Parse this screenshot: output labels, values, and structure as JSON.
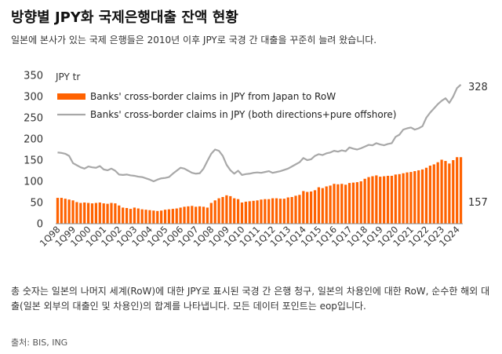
{
  "header": {
    "title": "방향별 JPY화 국제은행대출 잔액 현황",
    "subtitle": "일본에 본사가 있는 국제 은행들은 2010년 이후 JPY로 국경 간 대출을 꾸준히 늘려 왔습니다."
  },
  "footer": {
    "note": "총 숫자는 일본의 나머지 세계(RoW)에 대한 JPY로 표시된 국경 간 은행 청구, 일본의 차용인에 대한 RoW, 순수한 해외 대출(일본 외부의 대출인 및 차용인)의 합계를 나타냅니다. 모든 데이터 포인트는 eop입니다.",
    "source": "출처: BIS, ING"
  },
  "chart_data": {
    "type": "bar+line",
    "unit_label": "JPY tr",
    "ylim": [
      0,
      350
    ],
    "yticks": [
      "0",
      "50",
      "100",
      "150",
      "200",
      "250",
      "300",
      "350"
    ],
    "grid": false,
    "legend_position": "top-left",
    "colors": {
      "bar": "#ff6200",
      "line": "#a8a8a8"
    },
    "quarters": [
      "1Q98",
      "2Q98",
      "3Q98",
      "4Q98",
      "1Q99",
      "2Q99",
      "3Q99",
      "4Q99",
      "1Q00",
      "2Q00",
      "3Q00",
      "4Q00",
      "1Q01",
      "2Q01",
      "3Q01",
      "4Q01",
      "1Q02",
      "2Q02",
      "3Q02",
      "4Q02",
      "1Q03",
      "2Q03",
      "3Q03",
      "4Q03",
      "1Q04",
      "2Q04",
      "3Q04",
      "4Q04",
      "1Q05",
      "2Q05",
      "3Q05",
      "4Q05",
      "1Q06",
      "2Q06",
      "3Q06",
      "4Q06",
      "1Q07",
      "2Q07",
      "3Q07",
      "4Q07",
      "1Q08",
      "2Q08",
      "3Q08",
      "4Q08",
      "1Q09",
      "2Q09",
      "3Q09",
      "4Q09",
      "1Q10",
      "2Q10",
      "3Q10",
      "4Q10",
      "1Q11",
      "2Q11",
      "3Q11",
      "4Q11",
      "1Q12",
      "2Q12",
      "3Q12",
      "4Q12",
      "1Q13",
      "2Q13",
      "3Q13",
      "4Q13",
      "1Q14",
      "2Q14",
      "3Q14",
      "4Q14",
      "1Q15",
      "2Q15",
      "3Q15",
      "4Q15",
      "1Q16",
      "2Q16",
      "3Q16",
      "4Q16",
      "1Q17",
      "2Q17",
      "3Q17",
      "4Q17",
      "1Q18",
      "2Q18",
      "3Q18",
      "4Q18",
      "1Q19",
      "2Q19",
      "3Q19",
      "4Q19",
      "1Q20",
      "2Q20",
      "3Q20",
      "4Q20",
      "1Q21",
      "2Q21",
      "3Q21",
      "4Q21",
      "1Q22",
      "2Q22",
      "3Q22",
      "4Q22",
      "1Q23",
      "2Q23",
      "3Q23",
      "4Q23",
      "1Q24",
      "2Q24"
    ],
    "xtick_labels": [
      "1Q98",
      "1Q99",
      "1Q00",
      "1Q01",
      "1Q02",
      "1Q03",
      "1Q04",
      "1Q05",
      "1Q06",
      "1Q07",
      "1Q08",
      "1Q09",
      "1Q10",
      "1Q11",
      "1Q12",
      "1Q13",
      "1Q14",
      "1Q15",
      "1Q16",
      "1Q17",
      "1Q18",
      "1Q19",
      "1Q20",
      "1Q21",
      "1Q22",
      "1Q23",
      "1Q24"
    ],
    "series": [
      {
        "name": "Banks' cross-border claims in JPY from Japan to RoW",
        "type": "bar",
        "values": [
          61,
          61,
          59,
          57,
          55,
          51,
          49,
          50,
          49,
          48,
          49,
          50,
          48,
          47,
          49,
          48,
          43,
          38,
          37,
          35,
          38,
          36,
          34,
          33,
          32,
          31,
          30,
          31,
          33,
          34,
          35,
          36,
          38,
          40,
          41,
          42,
          40,
          41,
          40,
          38,
          49,
          55,
          60,
          63,
          67,
          65,
          60,
          58,
          50,
          52,
          53,
          54,
          55,
          57,
          58,
          58,
          60,
          60,
          59,
          59,
          62,
          63,
          66,
          68,
          77,
          75,
          76,
          79,
          86,
          84,
          88,
          90,
          94,
          93,
          94,
          92,
          96,
          97,
          98,
          100,
          106,
          110,
          112,
          114,
          111,
          112,
          113,
          113,
          116,
          117,
          119,
          121,
          122,
          124,
          126,
          128,
          132,
          137,
          140,
          145,
          151,
          148,
          142,
          150,
          157,
          157
        ]
      },
      {
        "name": "Banks' cross-border claims in JPY (both directions+pure offshore)",
        "type": "line",
        "values": [
          168,
          167,
          165,
          160,
          143,
          138,
          133,
          130,
          135,
          133,
          132,
          136,
          128,
          126,
          130,
          125,
          116,
          115,
          116,
          114,
          113,
          111,
          110,
          107,
          104,
          100,
          104,
          107,
          108,
          110,
          118,
          125,
          132,
          130,
          125,
          120,
          118,
          119,
          130,
          148,
          165,
          175,
          172,
          160,
          139,
          126,
          118,
          125,
          115,
          117,
          118,
          120,
          121,
          120,
          122,
          124,
          120,
          122,
          124,
          127,
          130,
          135,
          140,
          145,
          155,
          150,
          152,
          160,
          164,
          162,
          166,
          168,
          172,
          170,
          173,
          171,
          180,
          177,
          175,
          178,
          182,
          186,
          185,
          190,
          187,
          185,
          188,
          190,
          205,
          210,
          222,
          225,
          227,
          222,
          225,
          230,
          250,
          262,
          272,
          282,
          290,
          296,
          285,
          300,
          320,
          328
        ]
      }
    ],
    "end_labels": {
      "line": "328",
      "bar": "157"
    }
  }
}
